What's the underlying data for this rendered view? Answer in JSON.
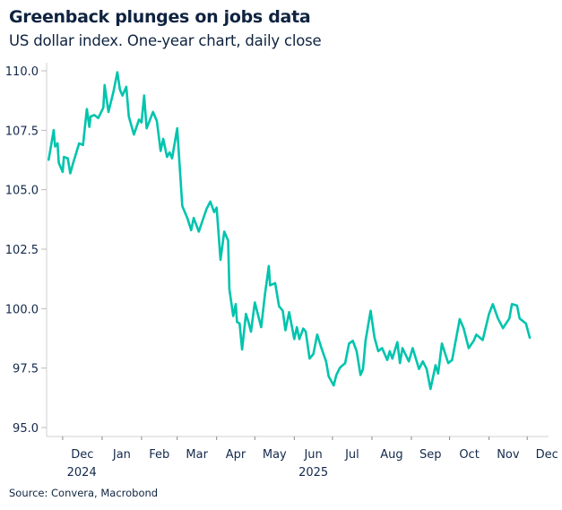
{
  "header": {
    "title": "Greenback plunges on jobs data",
    "subtitle": "US dollar index. One-year chart, daily close"
  },
  "footer": {
    "source": "Source: Convera, Macrobond"
  },
  "chart_data": {
    "type": "line",
    "title": "Greenback plunges on jobs data",
    "subtitle": "US dollar index. One-year chart, daily close",
    "xlabel": "",
    "ylabel": "",
    "ylim": [
      95,
      110
    ],
    "y_ticks": [
      "95.0",
      "97.5",
      "100.0",
      "102.5",
      "105.0",
      "107.5",
      "110.0"
    ],
    "x_tick_labels": [
      "Dec",
      "Jan",
      "Feb",
      "Mar",
      "Apr",
      "May",
      "Jun",
      "Jul",
      "Aug",
      "Sep",
      "Oct",
      "Nov",
      "Dec"
    ],
    "x_tick_months": [
      "2024-12",
      "2025-01",
      "2025-02",
      "2025-03",
      "2025-04",
      "2025-05",
      "2025-06",
      "2025-07",
      "2025-08",
      "2025-09",
      "2025-10",
      "2025-11",
      "2025-12"
    ],
    "year_labels": [
      {
        "label": "2024",
        "month": "2024-12"
      },
      {
        "label": "2025",
        "month": "2025-06"
      }
    ],
    "grid": false,
    "legend": "none",
    "line_color": "#00c4ad",
    "series": [
      {
        "x": [
          "2024-11-20",
          "2024-11-24",
          "2024-11-25",
          "2024-11-27",
          "2024-11-28",
          "2024-12-01",
          "2024-12-02",
          "2024-12-05",
          "2024-12-07",
          "2024-12-09",
          "2024-12-14",
          "2024-12-17",
          "2024-12-20",
          "2024-12-22",
          "2024-12-23",
          "2024-12-26",
          "2024-12-29",
          "2025-01-02",
          "2025-01-03",
          "2025-01-06",
          "2025-01-10",
          "2025-01-13",
          "2025-01-15",
          "2025-01-17",
          "2025-01-20",
          "2025-01-22",
          "2025-01-26",
          "2025-01-30",
          "2025-02-01",
          "2025-02-03",
          "2025-02-05",
          "2025-02-10",
          "2025-02-13",
          "2025-02-16",
          "2025-02-18",
          "2025-02-21",
          "2025-02-23",
          "2025-02-25",
          "2025-03-01",
          "2025-03-05",
          "2025-03-09",
          "2025-03-12",
          "2025-03-14",
          "2025-03-18",
          "2025-03-24",
          "2025-03-27",
          "2025-03-30",
          "2025-04-01",
          "2025-04-04",
          "2025-04-07",
          "2025-04-10",
          "2025-04-11",
          "2025-04-14",
          "2025-04-16",
          "2025-04-17",
          "2025-04-19",
          "2025-04-21",
          "2025-04-24",
          "2025-04-26",
          "2025-04-28",
          "2025-05-01",
          "2025-05-06",
          "2025-05-09",
          "2025-05-12",
          "2025-05-13",
          "2025-05-17",
          "2025-05-20",
          "2025-05-23",
          "2025-05-25",
          "2025-05-28",
          "2025-06-01",
          "2025-06-03",
          "2025-06-05",
          "2025-06-08",
          "2025-06-10",
          "2025-06-13",
          "2025-06-16",
          "2025-06-19",
          "2025-06-22",
          "2025-06-26",
          "2025-06-28",
          "2025-07-02",
          "2025-07-04",
          "2025-07-07",
          "2025-07-11",
          "2025-07-14",
          "2025-07-17",
          "2025-07-20",
          "2025-07-23",
          "2025-07-25",
          "2025-07-27",
          "2025-07-31",
          "2025-08-03",
          "2025-08-06",
          "2025-08-09",
          "2025-08-13",
          "2025-08-15",
          "2025-08-17",
          "2025-08-21",
          "2025-08-23",
          "2025-08-25",
          "2025-08-30",
          "2025-09-02",
          "2025-09-07",
          "2025-09-10",
          "2025-09-13",
          "2025-09-16",
          "2025-09-20",
          "2025-09-22",
          "2025-09-25",
          "2025-09-30",
          "2025-10-03",
          "2025-10-09",
          "2025-10-12",
          "2025-10-16",
          "2025-10-20",
          "2025-10-22",
          "2025-10-27",
          "2025-11-01",
          "2025-11-04",
          "2025-11-08",
          "2025-11-12",
          "2025-11-17",
          "2025-11-19",
          "2025-11-23",
          "2025-11-25",
          "2025-11-30",
          "2025-12-03"
        ],
        "values": [
          106.26,
          107.51,
          106.82,
          106.95,
          106.13,
          105.75,
          106.38,
          106.32,
          105.69,
          106.07,
          106.95,
          106.88,
          108.39,
          107.64,
          108.08,
          108.14,
          108.01,
          108.45,
          109.4,
          108.27,
          109.14,
          109.94,
          109.21,
          108.96,
          109.33,
          108.08,
          107.32,
          107.95,
          107.83,
          108.96,
          107.58,
          108.27,
          107.89,
          106.63,
          107.14,
          106.38,
          106.57,
          106.32,
          107.58,
          104.31,
          103.81,
          103.3,
          103.81,
          103.24,
          104.18,
          104.5,
          104.06,
          104.25,
          102.05,
          103.24,
          102.86,
          100.82,
          99.69,
          100.19,
          99.44,
          99.37,
          98.28,
          99.78,
          99.44,
          99.03,
          100.26,
          99.22,
          100.63,
          101.79,
          100.98,
          101.07,
          100.1,
          99.91,
          99.09,
          99.85,
          98.72,
          99.22,
          98.72,
          99.16,
          99.03,
          97.9,
          98.09,
          98.91,
          98.4,
          97.78,
          97.15,
          96.77,
          97.21,
          97.52,
          97.71,
          98.53,
          98.65,
          98.21,
          97.21,
          97.46,
          98.65,
          99.91,
          98.78,
          98.21,
          98.34,
          97.84,
          98.21,
          97.9,
          98.59,
          97.71,
          98.34,
          97.78,
          98.34,
          97.46,
          97.78,
          97.46,
          96.62,
          97.62,
          97.27,
          98.53,
          97.71,
          97.84,
          99.56,
          99.18,
          98.34,
          98.65,
          98.91,
          98.68,
          99.78,
          100.19,
          99.59,
          99.18,
          99.59,
          100.19,
          100.13,
          99.59,
          99.37,
          98.78
        ]
      }
    ]
  }
}
